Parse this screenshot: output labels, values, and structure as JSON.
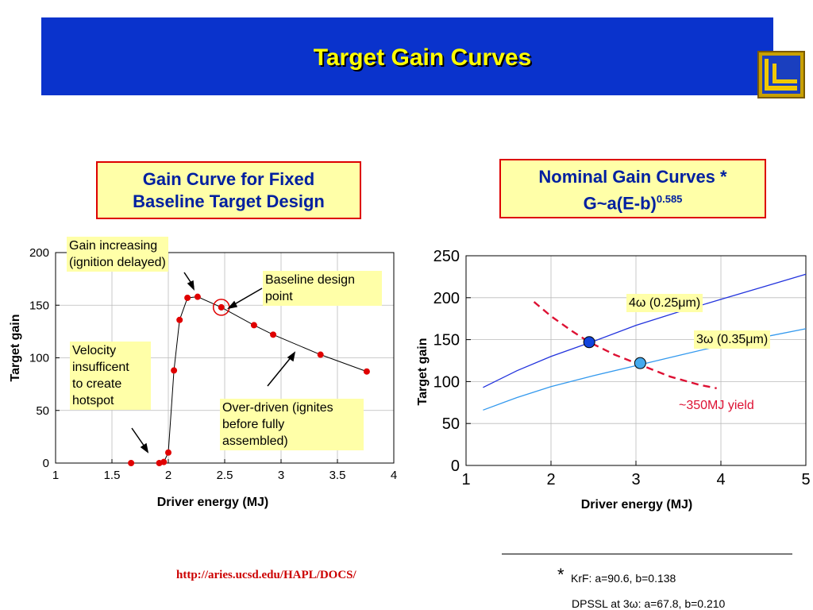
{
  "header": {
    "title": "Target Gain Curves"
  },
  "left_panel": {
    "caption_line1": "Gain Curve for Fixed",
    "caption_line2": "Baseline Target Design",
    "annotations": {
      "gain_increasing_1": "Gain increasing",
      "gain_increasing_2": "(ignition delayed)",
      "baseline_1": "Baseline design",
      "baseline_2": "point",
      "velocity_1": "Velocity",
      "velocity_2": "insufficent",
      "velocity_3": "to create",
      "velocity_4": "hotspot",
      "overdriven_1": "Over-driven (ignites",
      "overdriven_2": "before fully",
      "overdriven_3": "assembled)"
    }
  },
  "right_panel": {
    "caption_line1": "Nominal Gain Curves *",
    "caption_line2_base": "G~a(E-b)",
    "caption_line2_exp": "0.585",
    "labels": {
      "krf": "4ω (0.25μm)",
      "dpssl": "3ω (0.35μm)",
      "yield": "~350MJ yield"
    }
  },
  "footer": {
    "link": "http://aries.ucsd.edu/HAPL/DOCS/",
    "star": "*",
    "note1": "KrF: a=90.6, b=0.138",
    "note2": "DPSSL at 3ω: a=67.8, b=0.210"
  },
  "colors": {
    "banner": "#0a33cc",
    "title": "#ffff00",
    "caption_border": "#dd0000",
    "caption_fill": "#ffffa8",
    "points": "#e00000",
    "krf_line": "#2233dd",
    "dpssl_line": "#3399ee",
    "yield_line": "#dd1133",
    "krf_marker": "#1144dd",
    "dpssl_marker": "#44aaee"
  },
  "chart_data": [
    {
      "type": "line",
      "title": "",
      "xlabel": "Driver energy (MJ)",
      "ylabel": "Target gain",
      "xlim": [
        1,
        4
      ],
      "ylim": [
        0,
        200
      ],
      "xticks": [
        "1",
        "1.5",
        "2",
        "2.5",
        "3",
        "3.5",
        "4"
      ],
      "yticks": [
        "0",
        "50",
        "100",
        "150",
        "200"
      ],
      "grid": true,
      "series": [
        {
          "x": [
            1.67,
            1.92,
            1.96,
            2.0,
            2.05,
            2.1,
            2.17,
            2.26,
            2.47,
            2.76,
            2.93,
            3.35,
            3.76
          ],
          "values": [
            0,
            0,
            1,
            10,
            88,
            136,
            157,
            158,
            148,
            131,
            122,
            103,
            87
          ]
        }
      ],
      "highlight": {
        "x": 2.47,
        "y": 148
      }
    },
    {
      "type": "line",
      "title": "",
      "xlabel": "Driver energy (MJ)",
      "ylabel": "Target gain",
      "xlim": [
        1,
        5
      ],
      "ylim": [
        0,
        250
      ],
      "xticks": [
        "1",
        "2",
        "3",
        "4",
        "5"
      ],
      "yticks": [
        "0",
        "50",
        "100",
        "150",
        "200",
        "250"
      ],
      "grid": true,
      "series": [
        {
          "x": [
            1.2,
            1.6,
            2.0,
            2.5,
            3.0,
            3.5,
            4.0,
            4.5,
            5.0
          ],
          "values": [
            93,
            113,
            130,
            148,
            167,
            183,
            198,
            213,
            228
          ]
        },
        {
          "x": [
            1.2,
            1.6,
            2.0,
            2.5,
            3.0,
            3.5,
            4.0,
            4.5,
            5.0
          ],
          "values": [
            66,
            81,
            94,
            107,
            119,
            131,
            143,
            153,
            163
          ]
        },
        {
          "x": [
            1.8,
            2.0,
            2.25,
            2.45,
            2.75,
            3.05,
            3.4,
            3.75,
            3.95
          ],
          "values": [
            195,
            178,
            160,
            147,
            132,
            120,
            106,
            96,
            92
          ]
        }
      ],
      "markers": [
        {
          "x": 2.45,
          "y": 147
        },
        {
          "x": 3.05,
          "y": 122
        }
      ]
    }
  ]
}
